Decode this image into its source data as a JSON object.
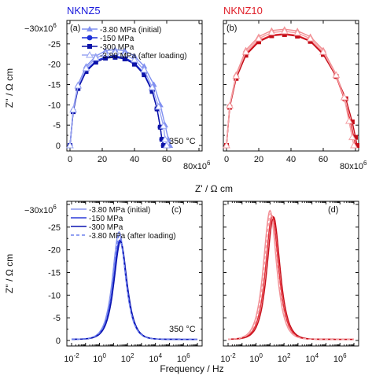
{
  "header": {
    "left_label": "NKNZ5",
    "right_label": "NKNZ10",
    "left_color": "#1a1adc",
    "right_color": "#e0202a"
  },
  "axes": {
    "nyquist_ylabel": "Z'' / Ω cm",
    "nyquist_xlabel": "Z' / Ω cm",
    "bode_ylabel": "Z'' / Ω cm",
    "bode_xlabel": "Frequency / Hz",
    "scale_prefix": "−30x10",
    "scale_exp": "6",
    "x_end_prefix": "80x10",
    "x_end_exp": "6",
    "temperature": "350 °C"
  },
  "legend": {
    "nyquist": [
      "-3.80 MPa (initial)",
      "-150 MPa",
      "-300 MPa",
      "-3.80 MPa (after loading)"
    ],
    "bode": [
      "-3.80 MPa (initial)",
      "-150 MPa",
      "-300 MPa",
      "-3.80 MPa (after loading)"
    ]
  },
  "chart_data": [
    {
      "panel": "(a)",
      "type": "scatter",
      "xlabel": "Z' / Ω cm",
      "ylabel": "Z'' / Ω cm",
      "x_unit_multiplier": "1e6",
      "xlim": [
        0,
        80
      ],
      "ylim": [
        0,
        30
      ],
      "y_axis_inverted_sign": true,
      "xticks": [
        "0",
        "20",
        "40",
        "60"
      ],
      "yticks": [
        "0",
        "-5",
        "-10",
        "-15",
        "-20",
        "-25"
      ],
      "series": [
        {
          "name": "-3.80 MPa (initial)",
          "marker": "triangle",
          "color": "#7f8ff0",
          "x": [
            0,
            2,
            5,
            10,
            16,
            22,
            28,
            34,
            40,
            46,
            52,
            56,
            59,
            61,
            62
          ],
          "y": [
            0,
            9,
            15,
            19.5,
            22,
            23.3,
            23.6,
            23.3,
            22,
            19.5,
            15,
            10,
            5,
            1.5,
            0
          ]
        },
        {
          "name": "-150 MPa",
          "marker": "pentagon",
          "color": "#1b2fd8",
          "x": [
            0,
            2,
            5,
            10,
            16,
            22,
            28,
            34,
            40,
            46,
            51,
            54,
            56,
            57,
            58
          ],
          "y": [
            0,
            8.5,
            14.3,
            18.5,
            20.8,
            21.8,
            22.0,
            21.6,
            20.3,
            17.7,
            13.5,
            9,
            4.5,
            1.5,
            0
          ]
        },
        {
          "name": "-300 MPa",
          "marker": "square",
          "color": "#0b12a8",
          "x": [
            0,
            2,
            5,
            10,
            16,
            22,
            28,
            34,
            40,
            46,
            51,
            54,
            56,
            57,
            58
          ],
          "y": [
            0,
            8.3,
            14,
            18.2,
            20.5,
            21.5,
            21.7,
            21.3,
            20,
            17.4,
            13.3,
            9,
            4.5,
            1.5,
            0
          ]
        },
        {
          "name": "-3.80 MPa (after loading)",
          "marker": "open-triangle",
          "color": "#9aa6f2",
          "x": [
            0,
            2,
            5,
            10,
            16,
            22,
            28,
            34,
            40,
            46,
            51,
            55,
            58,
            59,
            60
          ],
          "y": [
            0,
            8.8,
            14.7,
            19,
            21.5,
            22.6,
            22.9,
            22.5,
            21.1,
            18.6,
            14.3,
            9.5,
            4.8,
            1.5,
            0
          ]
        }
      ]
    },
    {
      "panel": "(b)",
      "type": "scatter",
      "xlabel": "Z' / Ω cm",
      "ylabel": "Z'' / Ω cm",
      "x_unit_multiplier": "1e6",
      "xlim": [
        0,
        80
      ],
      "ylim": [
        0,
        30
      ],
      "y_axis_inverted_sign": true,
      "xticks": [
        "0",
        "20",
        "40",
        "60"
      ],
      "series": [
        {
          "name": "-3.80 MPa (initial)",
          "marker": "triangle",
          "color": "#f08c90",
          "x": [
            0,
            2,
            6,
            12,
            20,
            28,
            36,
            44,
            52,
            60,
            68,
            73,
            76,
            78,
            79
          ],
          "y": [
            0,
            10,
            17.5,
            23.5,
            26.8,
            28.3,
            28.6,
            28.2,
            26.8,
            23.5,
            17.5,
            12,
            6,
            2,
            0
          ]
        },
        {
          "name": "-150 MPa",
          "marker": "pentagon",
          "color": "#e62a34",
          "x": [
            0,
            2,
            6,
            12,
            20,
            28,
            36,
            44,
            52,
            60,
            68,
            73,
            77,
            79,
            80
          ],
          "y": [
            0,
            9.6,
            16.8,
            22.5,
            25.8,
            27.2,
            27.5,
            27.1,
            25.8,
            22.6,
            17,
            11.5,
            5.8,
            2,
            0
          ]
        },
        {
          "name": "-300 MPa",
          "marker": "square",
          "color": "#c40d18",
          "x": [
            0,
            2,
            6,
            12,
            20,
            28,
            36,
            44,
            52,
            60,
            68,
            74,
            78,
            80,
            81
          ],
          "y": [
            0,
            9.4,
            16.5,
            22.2,
            25.5,
            27.0,
            27.3,
            26.9,
            25.6,
            22.4,
            17,
            11.5,
            5.8,
            2,
            0
          ]
        },
        {
          "name": "-3.80 MPa (after loading)",
          "marker": "open-triangle",
          "color": "#f4a0a4",
          "x": [
            0,
            2,
            6,
            12,
            20,
            28,
            36,
            44,
            52,
            60,
            68,
            73,
            76,
            78,
            79
          ],
          "y": [
            0,
            9.8,
            17.1,
            23,
            26.3,
            27.8,
            28.1,
            27.7,
            26.3,
            23,
            17.3,
            11.8,
            6,
            2,
            0
          ]
        }
      ]
    },
    {
      "panel": "(c)",
      "type": "line",
      "xlabel": "Frequency / Hz",
      "ylabel": "Z'' / Ω cm",
      "x_scale": "log",
      "xlim": [
        -2,
        7
      ],
      "ylim": [
        0,
        30
      ],
      "y_axis_inverted_sign": true,
      "xticks": [
        "10-2",
        "100",
        "102",
        "104",
        "106"
      ],
      "yticks": [
        "0",
        "-5",
        "-10",
        "-15",
        "-20",
        "-25"
      ],
      "series": [
        {
          "name": "-3.80 MPa (initial)",
          "color": "#8a96ee",
          "dash": "solid",
          "log10_peak_frequency": 1.4,
          "peak": 23.7
        },
        {
          "name": "-150 MPa",
          "color": "#2a3ad8",
          "dash": "solid",
          "log10_peak_frequency": 1.45,
          "peak": 21.9
        },
        {
          "name": "-300 MPa",
          "color": "#0c14b0",
          "dash": "solid",
          "log10_peak_frequency": 1.5,
          "peak": 21.6
        },
        {
          "name": "-3.80 MPa (after loading)",
          "color": "#6f82ee",
          "dash": "dashed",
          "log10_peak_frequency": 1.42,
          "peak": 22.9
        }
      ]
    },
    {
      "panel": "(d)",
      "type": "line",
      "xlabel": "Frequency / Hz",
      "ylabel": "Z'' / Ω cm",
      "x_scale": "log",
      "xlim": [
        -2,
        7
      ],
      "ylim": [
        0,
        30
      ],
      "y_axis_inverted_sign": true,
      "xticks": [
        "10-2",
        "100",
        "102",
        "104",
        "106"
      ],
      "series": [
        {
          "name": "-3.80 MPa (initial)",
          "color": "#f29096",
          "dash": "solid",
          "log10_peak_frequency": 1.0,
          "peak": 28.4
        },
        {
          "name": "-150 MPa",
          "color": "#e5323c",
          "dash": "solid",
          "log10_peak_frequency": 1.15,
          "peak": 27.2
        },
        {
          "name": "-300 MPa",
          "color": "#c80f1a",
          "dash": "solid",
          "log10_peak_frequency": 1.25,
          "peak": 27.0
        },
        {
          "name": "-3.80 MPa (after loading)",
          "color": "#f4a2a6",
          "dash": "dashed",
          "log10_peak_frequency": 1.05,
          "peak": 27.8
        }
      ]
    }
  ]
}
